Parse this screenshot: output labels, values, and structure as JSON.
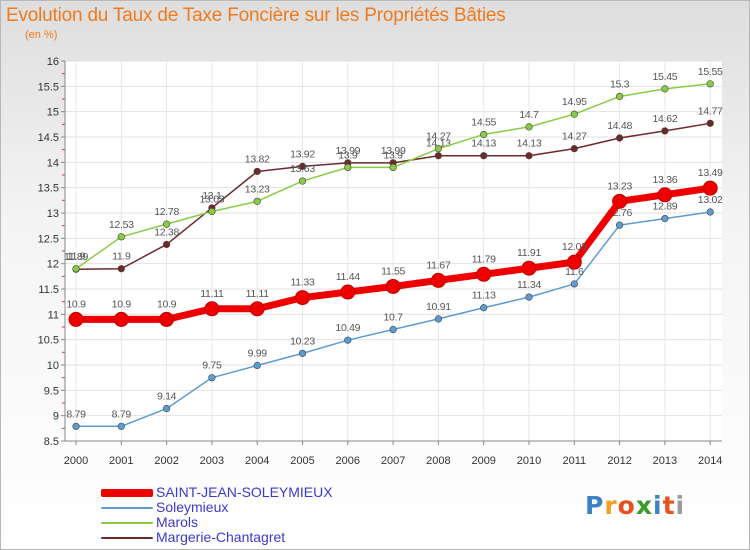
{
  "chart_data": {
    "type": "line",
    "title": "Evolution du Taux de Taxe Foncière sur les Propriétés Bâties",
    "ylabel": "(en %)",
    "xlabel": "",
    "x": [
      "2000",
      "2001",
      "2002",
      "2003",
      "2004",
      "2005",
      "2006",
      "2007",
      "2008",
      "2009",
      "2010",
      "2011",
      "2012",
      "2013",
      "2014"
    ],
    "ylim": [
      8.5,
      16
    ],
    "yticks": [
      "8.5",
      "9",
      "9.5",
      "10",
      "10.5",
      "11",
      "11.5",
      "12",
      "12.5",
      "13",
      "13.5",
      "14",
      "14.5",
      "15",
      "15.5",
      "16"
    ],
    "grid": true,
    "legend_position": "bottom-left",
    "series": [
      {
        "name": "Margerie-Chantagret",
        "color": "#6e2a2a",
        "emphasis": false,
        "values": [
          11.89,
          11.9,
          12.38,
          13.1,
          13.82,
          13.92,
          13.99,
          13.99,
          14.13,
          14.13,
          14.13,
          14.27,
          14.48,
          14.62,
          14.77
        ],
        "labels": [
          "11.89",
          "11.9",
          "12.38",
          "13.1",
          "13.82",
          "13.92",
          "13.99",
          "13.99",
          "14.13",
          "14.13",
          "14.13",
          "14.27",
          "14.48",
          "14.62",
          "14.77"
        ]
      },
      {
        "name": "Marols",
        "color": "#88cc44",
        "emphasis": false,
        "values": [
          11.9,
          12.53,
          12.78,
          13.03,
          13.23,
          13.63,
          13.9,
          13.9,
          14.27,
          14.55,
          14.7,
          14.95,
          15.3,
          15.45,
          15.55
        ],
        "labels": [
          "11.9",
          "12.53",
          "12.78",
          "13.03",
          "13.23",
          "13.63",
          "13.9",
          "13.9",
          "14.27",
          "14.55",
          "14.7",
          "14.95",
          "15.3",
          "15.45",
          "15.55"
        ]
      },
      {
        "name": "Soleymieux",
        "color": "#5d9bd0",
        "emphasis": false,
        "values": [
          8.79,
          8.79,
          9.14,
          9.75,
          9.99,
          10.23,
          10.49,
          10.7,
          10.91,
          11.13,
          11.34,
          11.6,
          12.76,
          12.89,
          13.02
        ],
        "labels": [
          "8.79",
          "8.79",
          "9.14",
          "9.75",
          "9.99",
          "10.23",
          "10.49",
          "10.7",
          "10.91",
          "11.13",
          "11.34",
          "11.6",
          "12.76",
          "12.89",
          "13.02"
        ]
      },
      {
        "name": "SAINT-JEAN-SOLEYMIEUX",
        "color": "#ee0000",
        "emphasis": true,
        "values": [
          10.9,
          10.9,
          10.9,
          11.11,
          11.11,
          11.33,
          11.44,
          11.55,
          11.67,
          11.79,
          11.91,
          12.03,
          13.23,
          13.36,
          13.49
        ],
        "labels": [
          "10.9",
          "10.9",
          "10.9",
          "11.11",
          "11.11",
          "11.33",
          "11.44",
          "11.55",
          "11.67",
          "11.79",
          "11.91",
          "12.03",
          "13.23",
          "13.36",
          "13.49"
        ]
      }
    ],
    "legend_order": [
      "SAINT-JEAN-SOLEYMIEUX",
      "Soleymieux",
      "Marols",
      "Margerie-Chantagret"
    ]
  },
  "branding": {
    "logo_letters": [
      "P",
      "r",
      "o",
      "x",
      "i",
      "t",
      "i"
    ],
    "logo_colors": [
      "#3b82c4",
      "#f0a020",
      "#e8501e",
      "#3b9a2a",
      "#3b82c4",
      "#e8501e",
      "#9a9a9a"
    ]
  }
}
